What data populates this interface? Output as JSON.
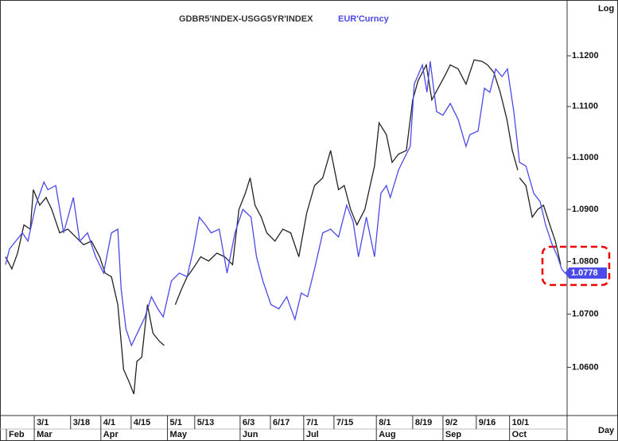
{
  "chart_data": {
    "type": "line",
    "log_scale": true,
    "y_axis_label": "Log",
    "x_axis_label": "Day",
    "xlim": [
      0,
      186
    ],
    "ylim": [
      1.051,
      1.1311
    ],
    "yticks": [
      {
        "value": 1.06,
        "label": "1.0600"
      },
      {
        "value": 1.07,
        "label": "1.0700"
      },
      {
        "value": 1.08,
        "label": "1.0800"
      },
      {
        "value": 1.09,
        "label": "1.0900"
      },
      {
        "value": 1.1,
        "label": "1.1000"
      },
      {
        "value": 1.11,
        "label": "1.1100"
      },
      {
        "value": 1.12,
        "label": "1.1200"
      }
    ],
    "xticks": [
      {
        "value": 10,
        "label": "3/1"
      },
      {
        "value": 22,
        "label": "3/18"
      },
      {
        "value": 32,
        "label": "4/1"
      },
      {
        "value": 42,
        "label": "4/15"
      },
      {
        "value": 54,
        "label": "5/1"
      },
      {
        "value": 63,
        "label": "5/13"
      },
      {
        "value": 78,
        "label": "6/3"
      },
      {
        "value": 88,
        "label": "6/17"
      },
      {
        "value": 99,
        "label": "7/1"
      },
      {
        "value": 109,
        "label": "7/15"
      },
      {
        "value": 123,
        "label": "8/1"
      },
      {
        "value": 135,
        "label": "8/19"
      },
      {
        "value": 145,
        "label": "9/2"
      },
      {
        "value": 156,
        "label": "9/16"
      },
      {
        "value": 167,
        "label": "10/1"
      }
    ],
    "month_ticks": [
      {
        "value": 0.8,
        "label": "Feb"
      },
      {
        "value": 10,
        "label": "Mar"
      },
      {
        "value": 32,
        "label": "Apr"
      },
      {
        "value": 54,
        "label": "May"
      },
      {
        "value": 78,
        "label": "Jun"
      },
      {
        "value": 99,
        "label": "Jul"
      },
      {
        "value": 123,
        "label": "Aug"
      },
      {
        "value": 145,
        "label": "Sep"
      },
      {
        "value": 167,
        "label": "Oct"
      }
    ],
    "series": [
      {
        "name": "GDBR5'INDEX-USGG5YR'INDEX",
        "color": "#222222",
        "x": [
          0.5,
          2.6,
          4.5,
          6.6,
          8.7,
          9.7,
          11.8,
          13.9,
          15.8,
          18.4,
          21.1,
          23.7,
          26.3,
          28.9,
          31.6,
          33.4,
          35.5,
          37.6,
          39.5,
          41.3,
          42.9,
          43.9,
          45.5,
          47.4,
          49.2,
          51.3,
          52.9,
          null,
          56.6,
          58.7,
          60.5,
          62.4,
          65,
          67.6,
          70.3,
          72.9,
          75.5,
          77.6,
          79.7,
          81.3,
          82.9,
          85,
          86.8,
          89.5,
          92.1,
          94.7,
          97.4,
          100,
          102.6,
          105.3,
          107.9,
          110.5,
          112.4,
          114.5,
          116.6,
          119.2,
          122.4,
          123.9,
          126.3,
          128.2,
          130.3,
          132.9,
          135,
          136.8,
          139.5,
          141.3,
          143.4,
          145.5,
          147.4,
          150,
          152.6,
          155.3,
          157.9,
          159.7,
          161.8,
          163.9,
          166.1,
          167.9,
          169.7,
          null,
          170.3,
          172.4,
          174.5,
          176.3,
          178.2,
          180.3,
          182.1,
          183.9
        ],
        "values": [
          1.0809,
          1.0786,
          1.0816,
          1.087,
          1.0862,
          1.0938,
          1.0908,
          1.0923,
          1.09,
          1.0855,
          1.0862,
          1.0847,
          1.0832,
          1.0839,
          1.0809,
          1.0778,
          1.0771,
          1.0718,
          1.0596,
          1.0573,
          1.055,
          1.0611,
          1.0619,
          1.0718,
          1.0664,
          1.0649,
          1.0641,
          null,
          1.0718,
          1.0748,
          1.0771,
          1.0786,
          1.0809,
          1.0801,
          1.0816,
          1.0809,
          1.0794,
          1.09,
          1.0931,
          1.0961,
          1.0908,
          1.0885,
          1.0855,
          1.0839,
          1.0862,
          1.0855,
          1.0809,
          1.0893,
          1.0946,
          1.0961,
          1.1014,
          1.0938,
          1.0946,
          1.09,
          1.087,
          1.09,
          1.0984,
          1.1068,
          1.1045,
          1.0991,
          1.1007,
          1.1014,
          1.1113,
          1.1151,
          1.1182,
          1.1113,
          1.1136,
          1.1159,
          1.1182,
          1.1174,
          1.1144,
          1.1192,
          1.1189,
          1.1182,
          1.1167,
          1.1128,
          1.1075,
          1.1014,
          1.0976,
          null,
          1.0961,
          1.0946,
          1.0885,
          1.09,
          1.0908,
          1.087,
          1.0839,
          1.0794
        ]
      },
      {
        "name": "EUR'Curncy",
        "color": "#4a4ae8",
        "x": [
          0.5,
          1.8,
          3.9,
          6.1,
          7.9,
          10.5,
          13.2,
          14.5,
          17.1,
          19.7,
          22.9,
          25,
          27.6,
          30.3,
          32.9,
          35.5,
          37.6,
          38.7,
          40.3,
          42.1,
          44.7,
          46.6,
          48.7,
          50.8,
          52.6,
          55.3,
          57.9,
          60.5,
          62.6,
          64.5,
          66.6,
          68.4,
          71.1,
          73.7,
          76.3,
          78.9,
          81.6,
          83.4,
          85.5,
          88.2,
          90.8,
          93.4,
          96.1,
          98.2,
          100.3,
          102.6,
          105.3,
          107.9,
          110.5,
          113.2,
          115.3,
          117.1,
          119.7,
          122.4,
          124.5,
          126.3,
          127.6,
          130.3,
          132.9,
          134.2,
          135.5,
          138.2,
          139.7,
          140.8,
          142.9,
          145,
          147.4,
          150,
          152.6,
          153.9,
          156.6,
          158.7,
          160.5,
          162.4,
          164.5,
          166.3,
          168.4,
          170.3,
          172.4,
          175,
          177.1,
          178.9,
          181.1,
          182.9,
          184.2,
          185.3
        ],
        "values": [
          1.0794,
          1.0824,
          1.0839,
          1.0855,
          1.0839,
          1.0908,
          1.0953,
          1.0938,
          1.0946,
          1.0855,
          1.0923,
          1.0839,
          1.0855,
          1.0809,
          1.0778,
          1.0855,
          1.0862,
          1.0748,
          1.0672,
          1.0641,
          1.0672,
          1.0695,
          1.0733,
          1.071,
          1.0695,
          1.0763,
          1.0778,
          1.0771,
          1.0824,
          1.0885,
          1.087,
          1.0855,
          1.0862,
          1.0778,
          1.0855,
          1.09,
          1.0885,
          1.0809,
          1.0763,
          1.0718,
          1.071,
          1.0733,
          1.069,
          1.074,
          1.0733,
          1.0786,
          1.0855,
          1.0862,
          1.0847,
          1.0908,
          1.0877,
          1.0809,
          1.0885,
          1.0809,
          1.0931,
          1.0946,
          1.0923,
          1.0976,
          1.1007,
          1.1022,
          1.1144,
          1.1182,
          1.1128,
          1.1189,
          1.109,
          1.1083,
          1.1106,
          1.1075,
          1.1022,
          1.1045,
          1.1052,
          1.1136,
          1.1128,
          1.1174,
          1.1159,
          1.1174,
          1.109,
          1.0991,
          1.0984,
          1.0931,
          1.0915,
          1.087,
          1.0832,
          1.0809,
          1.0786,
          1.0778
        ]
      }
    ]
  }
}
